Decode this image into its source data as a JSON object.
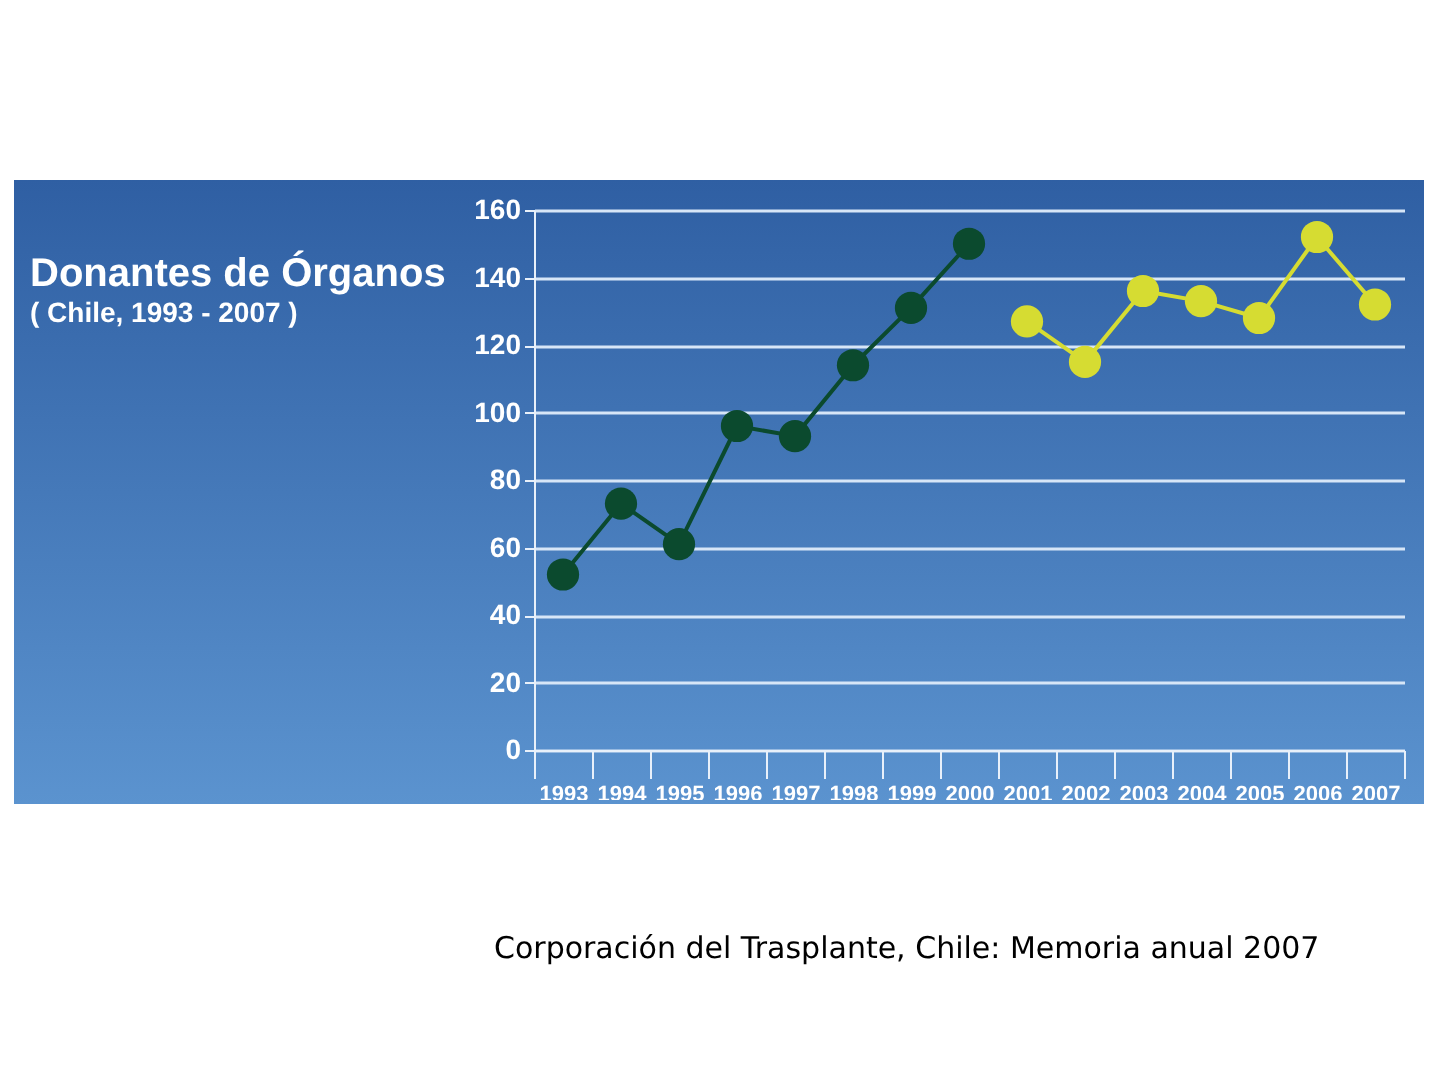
{
  "chart_data": {
    "type": "line",
    "title": "Donantes de Órganos",
    "subtitle": "( Chile, 1993 - 2007 )",
    "categories": [
      "1993",
      "1994",
      "1995",
      "1996",
      "1997",
      "1998",
      "1999",
      "2000",
      "2001",
      "2002",
      "2003",
      "2004",
      "2005",
      "2006",
      "2007"
    ],
    "series": [
      {
        "color": "#0b4a2e",
        "values": [
          52,
          73,
          61,
          96,
          93,
          114,
          131,
          150,
          null,
          null,
          null,
          null,
          null,
          null,
          null
        ]
      },
      {
        "color": "#d6dc32",
        "values": [
          null,
          null,
          null,
          null,
          null,
          null,
          null,
          null,
          127,
          115,
          136,
          133,
          128,
          152,
          132
        ]
      }
    ],
    "ylim": [
      0,
      160
    ],
    "yticks": [
      0,
      20,
      40,
      60,
      80,
      100,
      120,
      140,
      160
    ],
    "grid": "y",
    "marker": "circle",
    "line_style": "solid",
    "annotations": [
      "Corporación del Trasplante, Chile: Memoria anual 2007"
    ]
  }
}
